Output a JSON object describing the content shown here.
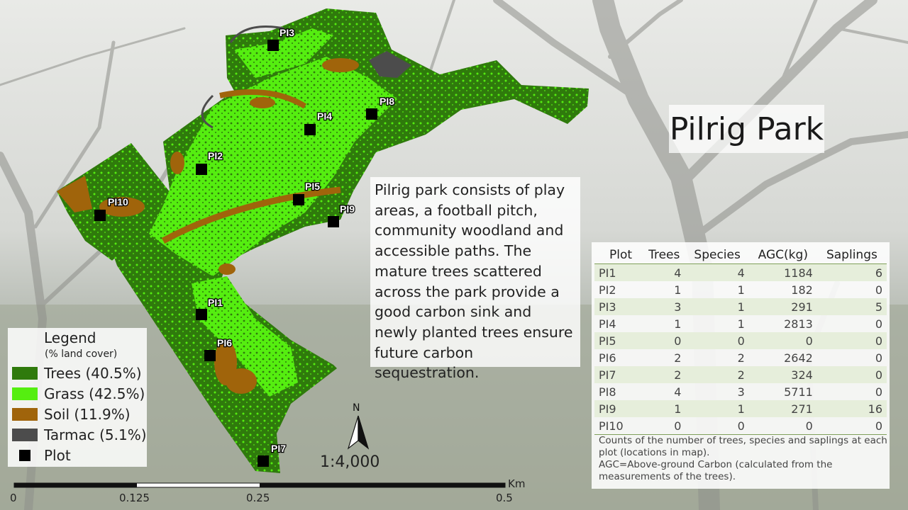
{
  "title": "Pilrig Park",
  "description": "Pilrig park consists of play areas, a football pitch, community woodland and accessible paths. The mature trees scattered across the park provide a good carbon sink and newly planted trees ensure future carbon sequestration.",
  "legend": {
    "title": "Legend",
    "subtitle": "(% land cover)",
    "items": [
      {
        "label": "Trees (40.5%)",
        "color": "#2f7a0c",
        "icon": "square"
      },
      {
        "label": "Grass (42.5%)",
        "color": "#55ee10",
        "icon": "square"
      },
      {
        "label": "Soil (11.9%)",
        "color": "#a0640b",
        "icon": "square"
      },
      {
        "label": "Tarmac (5.1%)",
        "color": "#4c4c4c",
        "icon": "square"
      },
      {
        "label": "Plot",
        "color": "#000000",
        "icon": "plot-marker"
      }
    ]
  },
  "plots": [
    "PI1",
    "PI2",
    "PI3",
    "PI4",
    "PI5",
    "PI6",
    "PI7",
    "PI8",
    "PI9",
    "PI10"
  ],
  "table": {
    "headers": [
      "Plot",
      "Trees",
      "Species",
      "AGC(kg)",
      "Saplings"
    ],
    "rows": [
      [
        "PI1",
        "4",
        "4",
        "1184",
        "6"
      ],
      [
        "PI2",
        "1",
        "1",
        "182",
        "0"
      ],
      [
        "PI3",
        "3",
        "1",
        "291",
        "5"
      ],
      [
        "PI4",
        "1",
        "1",
        "2813",
        "0"
      ],
      [
        "PI5",
        "0",
        "0",
        "0",
        "0"
      ],
      [
        "PI6",
        "2",
        "2",
        "2642",
        "0"
      ],
      [
        "PI7",
        "2",
        "2",
        "324",
        "0"
      ],
      [
        "PI8",
        "4",
        "3",
        "5711",
        "0"
      ],
      [
        "PI9",
        "1",
        "1",
        "271",
        "16"
      ],
      [
        "PI10",
        "0",
        "0",
        "0",
        "0"
      ]
    ],
    "note_1": "Counts of the number of trees, species and saplings at each plot (locations in map).",
    "note_2": "AGC=Above-ground Carbon (calculated from the measurements of the trees)."
  },
  "scale": {
    "ratio": "1:4,000",
    "unit": "Km",
    "ticks": [
      "0",
      "0.125",
      "0.25",
      "0.5"
    ]
  },
  "north_label": "N",
  "colors": {
    "trees": "#2f7a0c",
    "grass": "#55ee10",
    "soil": "#a0640b",
    "tarmac": "#4c4c4c"
  }
}
